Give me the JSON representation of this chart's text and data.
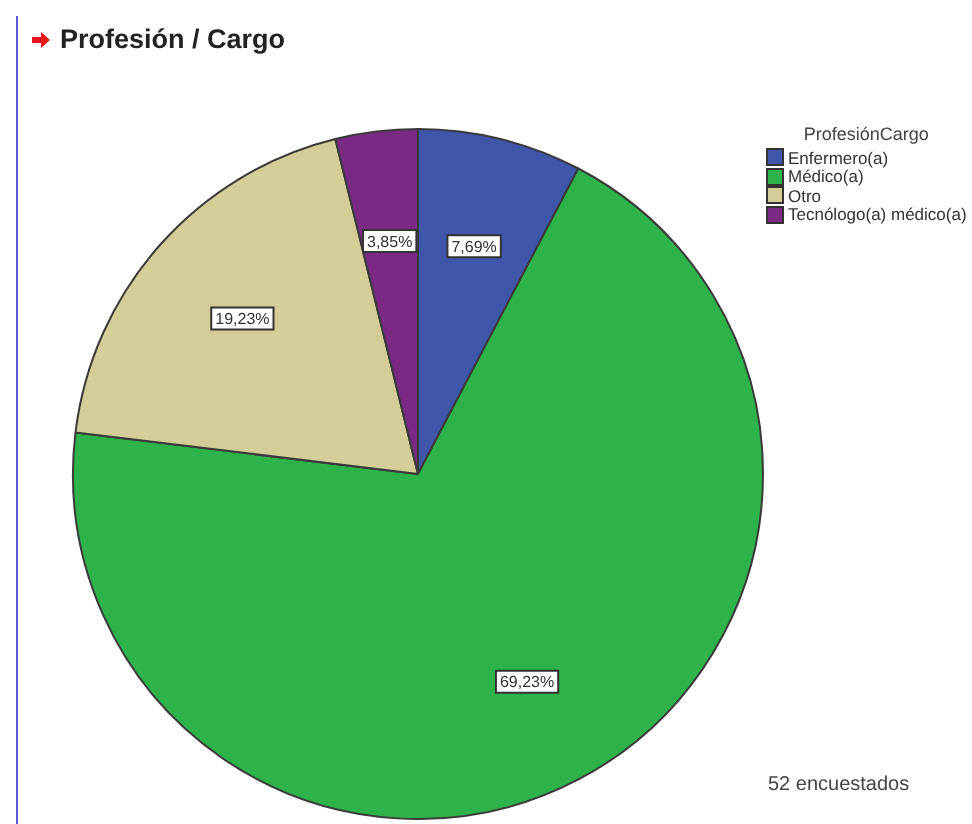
{
  "chart_data": {
    "type": "pie",
    "title": "Profesión / Cargo",
    "legend_title": "ProfesiónCargo",
    "categories": [
      "Enfermero(a)",
      "Médico(a)",
      "Otro",
      "Tecnólogo(a) médico(a)"
    ],
    "values": [
      7.69,
      69.23,
      19.23,
      3.85
    ],
    "colors": [
      "#3f56ab",
      "#2eb34b",
      "#d5cd98",
      "#7a2a84"
    ],
    "value_labels": [
      "7,69%",
      "69,23%",
      "19,23%",
      "3,85%"
    ],
    "legend": "top right",
    "annotations": [
      "52 encuestados"
    ]
  }
}
